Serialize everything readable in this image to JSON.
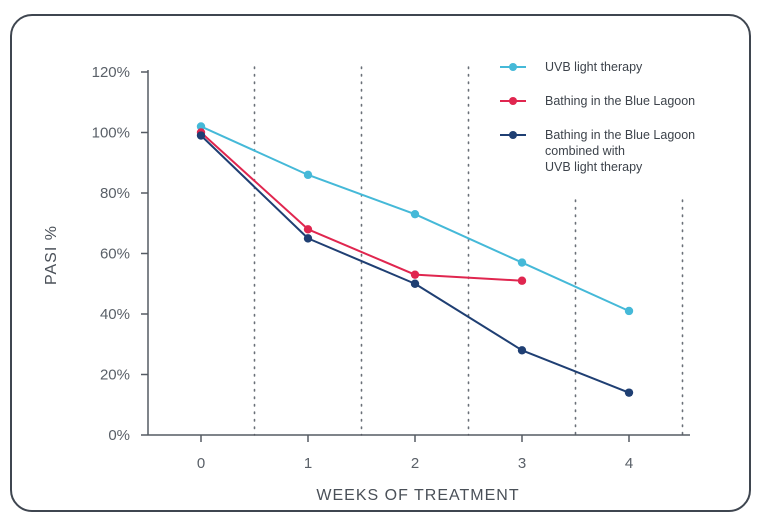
{
  "chart_data": {
    "type": "line",
    "title": "",
    "xlabel": "WEEKS OF TREATMENT",
    "ylabel": "PASI %",
    "categories": [
      "0",
      "1",
      "2",
      "3",
      "4"
    ],
    "x": [
      0,
      1,
      2,
      3,
      4
    ],
    "ylim": [
      0,
      120
    ],
    "yticks": [
      "0%",
      "20%",
      "40%",
      "60%",
      "80%",
      "100%",
      "120%"
    ],
    "ytick_values": [
      0,
      20,
      40,
      60,
      80,
      100,
      120
    ],
    "grid": "vertical-dotted",
    "legend_position": "top-right",
    "series": [
      {
        "name": "UVB light therapy",
        "legend_lines": [
          "UVB light therapy"
        ],
        "color": "#45b9d8",
        "x": [
          0,
          1,
          2,
          3,
          4
        ],
        "values": [
          102,
          86,
          73,
          57,
          41
        ]
      },
      {
        "name": "Bathing in the Blue Lagoon",
        "legend_lines": [
          "Bathing in the Blue Lagoon"
        ],
        "color": "#e0264f",
        "x": [
          0,
          1,
          2,
          3
        ],
        "values": [
          100,
          68,
          53,
          51
        ]
      },
      {
        "name": "Bathing in the Blue Lagoon combined with UVB light therapy",
        "legend_lines": [
          "Bathing in the Blue Lagoon",
          "combined with",
          "UVB light therapy"
        ],
        "color": "#1f3f73",
        "x": [
          0,
          1,
          2,
          3,
          4
        ],
        "values": [
          99,
          65,
          50,
          28,
          14
        ]
      }
    ]
  }
}
